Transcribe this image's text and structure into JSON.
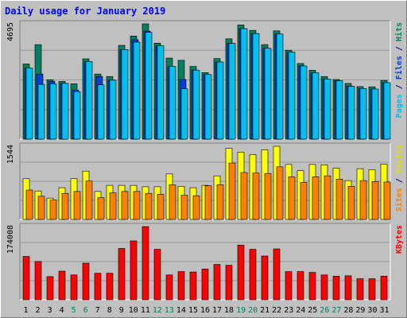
{
  "chart_data": {
    "type": "bar",
    "title": "Daily usage for January 2019",
    "categories": [
      "1",
      "2",
      "3",
      "4",
      "5",
      "6",
      "7",
      "8",
      "9",
      "10",
      "11",
      "12",
      "13",
      "14",
      "15",
      "16",
      "17",
      "18",
      "19",
      "20",
      "21",
      "22",
      "23",
      "24",
      "25",
      "26",
      "27",
      "28",
      "29",
      "30",
      "31"
    ],
    "weekend_days": [
      "5",
      "6",
      "12",
      "13",
      "19",
      "20",
      "26",
      "27"
    ],
    "panels": [
      {
        "name": "hits-files-pages",
        "max_label": "4695",
        "ymax": 4695,
        "ylabel_parts": [
          {
            "text": "Pages",
            "color": "#00c0f0"
          },
          {
            "text": " / ",
            "color": "#0000a0"
          },
          {
            "text": "Files",
            "color": "#0040d8"
          },
          {
            "text": " / ",
            "color": "#0000a0"
          },
          {
            "text": "Hits",
            "color": "#008060"
          }
        ],
        "series": [
          {
            "name": "Hits",
            "color": "#008060",
            "values": [
              3060,
              3850,
              2420,
              2350,
              2255,
              3270,
              2650,
              2550,
              3820,
              4200,
              4695,
              3910,
              3300,
              3210,
              2960,
              2710,
              3280,
              4085,
              4650,
              4430,
              3850,
              4410,
              3620,
              3080,
              2805,
              2550,
              2430,
              2270,
              2140,
              2130,
              2390
            ]
          },
          {
            "name": "Files",
            "color": "#0040d8",
            "values": [
              2890,
              2650,
              2350,
              2270,
              2000,
              3160,
              2550,
              2400,
              3650,
              4050,
              4400,
              3800,
              2960,
              2430,
              2810,
              2630,
              3140,
              3900,
              4500,
              4300,
              3700,
              4280,
              3540,
              2980,
              2700,
              2440,
              2380,
              2150,
              2060,
              2040,
              2300
            ]
          },
          {
            "name": "Pages",
            "color": "#00c0f0",
            "values": [
              2890,
              2230,
              2250,
              2270,
              1930,
              3160,
              2210,
              2400,
              3650,
              3950,
              4350,
              3800,
              2960,
              2050,
              2810,
              2630,
              3140,
              3900,
              4500,
              4300,
              3700,
              4280,
              3540,
              2980,
              2700,
              2440,
              2380,
              2150,
              2060,
              2040,
              2300
            ]
          }
        ]
      },
      {
        "name": "visits-sites",
        "max_label": "1544",
        "ymax": 1544,
        "ylabel_parts": [
          {
            "text": "Sites",
            "color": "#ff8000"
          },
          {
            "text": " / ",
            "color": "#0000a0"
          },
          {
            "text": "Visits",
            "color": "#e0e000"
          }
        ],
        "series": [
          {
            "name": "Visits",
            "color": "#ffff00",
            "values": [
              860,
              600,
              450,
              670,
              860,
              1020,
              590,
              720,
              720,
              720,
              690,
              690,
              960,
              700,
              670,
              720,
              920,
              1500,
              1420,
              1370,
              1470,
              1544,
              1160,
              1030,
              1160,
              1150,
              1080,
              820,
              1070,
              1050,
              1170
            ]
          },
          {
            "name": "Sites",
            "color": "#ff8000",
            "values": [
              620,
              490,
              410,
              550,
              590,
              810,
              460,
              560,
              590,
              590,
              550,
              530,
              730,
              510,
              500,
              710,
              730,
              1190,
              990,
              980,
              970,
              1110,
              900,
              780,
              900,
              920,
              850,
              700,
              820,
              800,
              790
            ]
          }
        ]
      },
      {
        "name": "kbytes",
        "max_label": "174008",
        "ymax": 174008,
        "ylabel_parts": [
          {
            "text": "KBytes",
            "color": "#ff0000"
          }
        ],
        "series": [
          {
            "name": "KBytes",
            "color": "#ff0000",
            "values": [
              103000,
              91000,
              55000,
              68000,
              59000,
              87000,
              63000,
              63000,
              122000,
              140000,
              174008,
              120000,
              59000,
              67000,
              66000,
              73000,
              84000,
              82000,
              130000,
              120000,
              104000,
              121000,
              67000,
              67000,
              65000,
              59000,
              56000,
              57000,
              50000,
              50000,
              56000
            ]
          }
        ]
      }
    ]
  }
}
